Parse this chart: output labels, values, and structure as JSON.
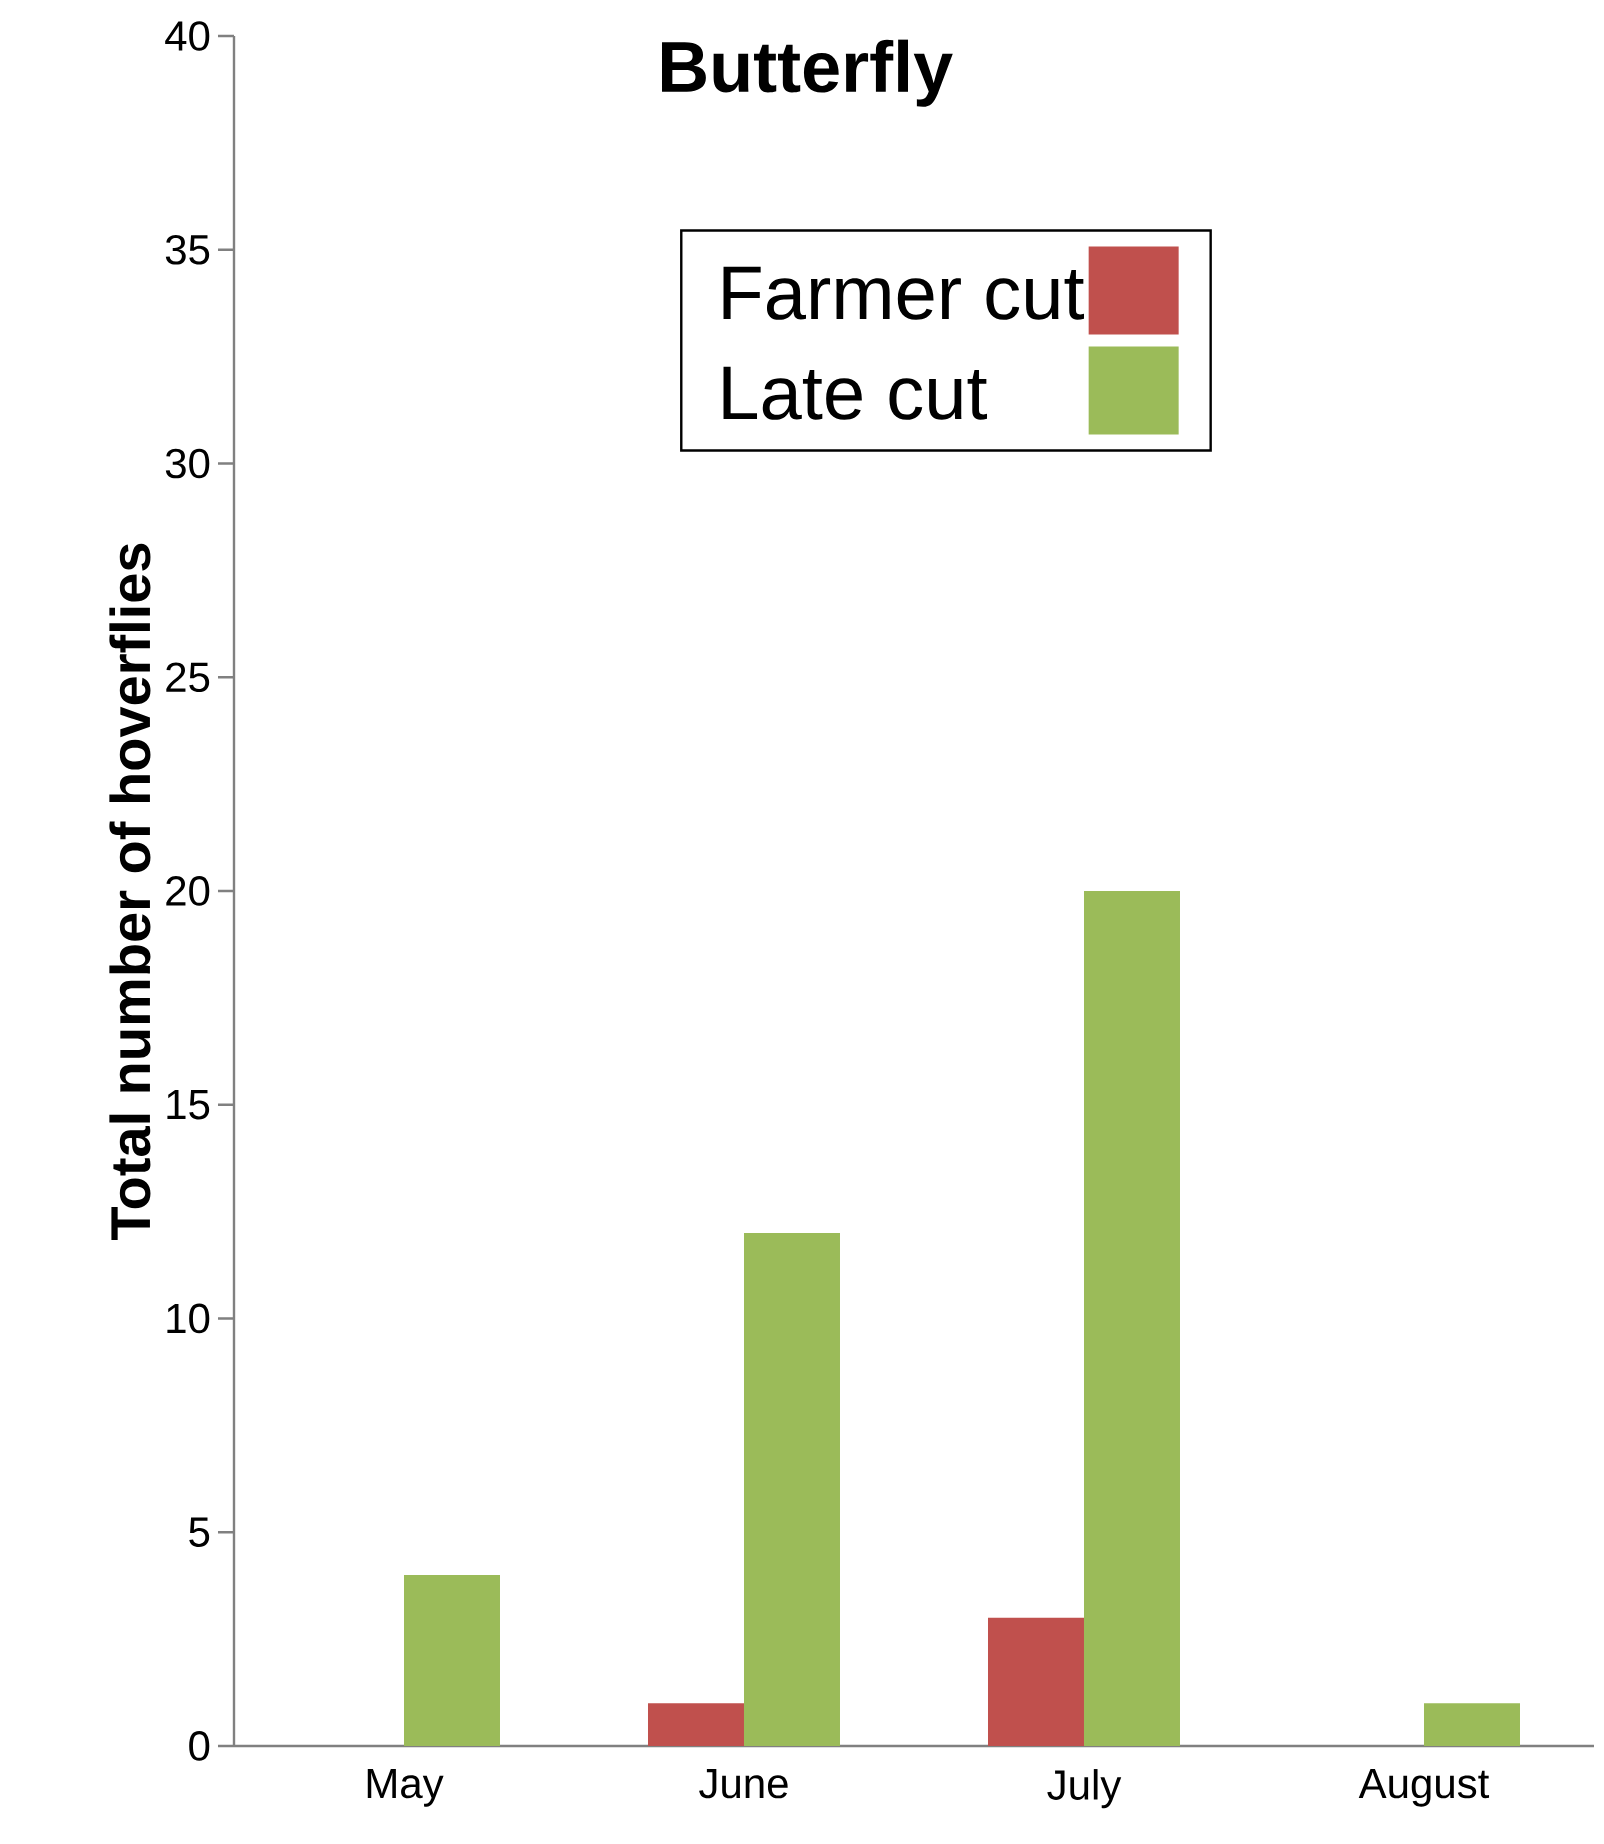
{
  "chart_data": {
    "type": "bar",
    "title": "Butterfly",
    "ylabel": "Total number of hoverflies",
    "categories": [
      "May",
      "June",
      "July",
      "August"
    ],
    "series": [
      {
        "name": "Farmer cut",
        "color": "#c0504d",
        "values": [
          0,
          1,
          3,
          0
        ]
      },
      {
        "name": "Late cut",
        "color": "#9bbb59",
        "values": [
          4,
          12,
          20,
          1
        ]
      }
    ],
    "ylim": [
      0,
      40
    ],
    "yticks": [
      0,
      5,
      10,
      15,
      20,
      25,
      30,
      35,
      40
    ],
    "legend": "top right"
  }
}
